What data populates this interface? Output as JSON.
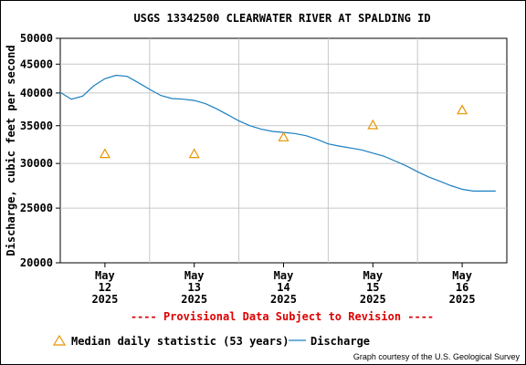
{
  "chart_data": {
    "type": "line",
    "title": "USGS 13342500 CLEARWATER RIVER AT SPALDING ID",
    "xlabel": "",
    "ylabel": "Discharge, cubic feet per second",
    "y_scale": "log",
    "ylim": [
      20000,
      50000
    ],
    "y_ticks": [
      "50000",
      "45000",
      "40000",
      "35000",
      "30000",
      "25000",
      "20000"
    ],
    "y_tick_values": [
      50000,
      45000,
      40000,
      35000,
      30000,
      25000,
      20000
    ],
    "x_ticks": [
      {
        "month": "May",
        "day": "12",
        "year": "2025"
      },
      {
        "month": "May",
        "day": "13",
        "year": "2025"
      },
      {
        "month": "May",
        "day": "14",
        "year": "2025"
      },
      {
        "month": "May",
        "day": "15",
        "year": "2025"
      },
      {
        "month": "May",
        "day": "16",
        "year": "2025"
      }
    ],
    "xlim": [
      "2025-05-11T12:00",
      "2025-05-16T12:00"
    ],
    "grid": true,
    "legend_placement": "bottom",
    "series": [
      {
        "name": "Discharge",
        "color": "#1a7fc2",
        "style": "line",
        "x": [
          "2025-05-11T12:00",
          "2025-05-11T15:00",
          "2025-05-11T18:00",
          "2025-05-11T21:00",
          "2025-05-12T00:00",
          "2025-05-12T03:00",
          "2025-05-12T06:00",
          "2025-05-12T09:00",
          "2025-05-12T12:00",
          "2025-05-12T15:00",
          "2025-05-12T18:00",
          "2025-05-12T21:00",
          "2025-05-13T00:00",
          "2025-05-13T03:00",
          "2025-05-13T06:00",
          "2025-05-13T09:00",
          "2025-05-13T12:00",
          "2025-05-13T15:00",
          "2025-05-13T18:00",
          "2025-05-13T21:00",
          "2025-05-14T00:00",
          "2025-05-14T03:00",
          "2025-05-14T06:00",
          "2025-05-14T09:00",
          "2025-05-14T12:00",
          "2025-05-14T15:00",
          "2025-05-14T18:00",
          "2025-05-14T21:00",
          "2025-05-15T00:00",
          "2025-05-15T03:00",
          "2025-05-15T06:00",
          "2025-05-15T09:00",
          "2025-05-15T12:00",
          "2025-05-15T15:00",
          "2025-05-15T18:00",
          "2025-05-15T21:00",
          "2025-05-16T00:00",
          "2025-05-16T03:00",
          "2025-05-16T06:00",
          "2025-05-16T09:00"
        ],
        "values": [
          40100,
          39000,
          39500,
          41200,
          42400,
          43000,
          42800,
          41700,
          40600,
          39600,
          39100,
          39000,
          38800,
          38300,
          37500,
          36600,
          35700,
          35000,
          34500,
          34200,
          34050,
          33900,
          33600,
          33100,
          32500,
          32200,
          31950,
          31700,
          31300,
          30900,
          30300,
          29700,
          29000,
          28400,
          27900,
          27400,
          27000,
          26800,
          26800,
          26800
        ]
      },
      {
        "name": "Median daily statistic (53 years)",
        "color": "#e69500",
        "style": "triangle",
        "x": [
          "2025-05-12T00:00",
          "2025-05-13T00:00",
          "2025-05-14T00:00",
          "2025-05-15T00:00",
          "2025-05-16T00:00"
        ],
        "values": [
          31200,
          31200,
          33400,
          35100,
          37300
        ]
      }
    ],
    "annotations": {
      "provisional": "---- Provisional Data Subject to Revision ----",
      "credit": "Graph courtesy of the U.S. Geological Survey"
    }
  },
  "legend": {
    "median_label": "Median daily statistic (53 years)",
    "discharge_label": "Discharge"
  }
}
